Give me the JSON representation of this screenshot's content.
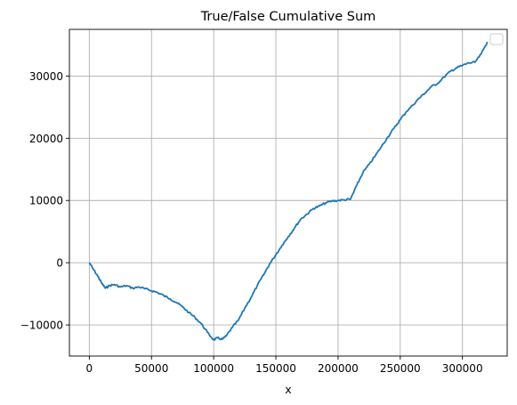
{
  "chart_data": {
    "type": "line",
    "title": "True/False Cumulative Sum",
    "xlabel": "x",
    "ylabel": "",
    "xlim": [
      -16000,
      336000
    ],
    "ylim": [
      -15000,
      37500
    ],
    "x_ticks": [
      0,
      50000,
      100000,
      150000,
      200000,
      250000,
      300000
    ],
    "x_tick_labels": [
      "0",
      "50000",
      "100000",
      "150000",
      "200000",
      "250000",
      "300000"
    ],
    "y_ticks": [
      -10000,
      0,
      10000,
      20000,
      30000
    ],
    "y_tick_labels": [
      "−10000",
      "0",
      "10000",
      "20000",
      "30000"
    ],
    "grid": true,
    "legend": {
      "placement": "top-right",
      "entries": []
    },
    "series": [
      {
        "color": "#1f77b4",
        "x": [
          0,
          3000,
          7000,
          10000,
          13000,
          16000,
          20000,
          25000,
          30000,
          35000,
          40000,
          45000,
          50000,
          55000,
          60000,
          65000,
          70000,
          75000,
          80000,
          85000,
          90000,
          95000,
          100000,
          103000,
          107000,
          110000,
          115000,
          120000,
          125000,
          130000,
          135000,
          140000,
          145000,
          150000,
          155000,
          160000,
          165000,
          170000,
          175000,
          180000,
          185000,
          190000,
          195000,
          200000,
          205000,
          210000,
          215000,
          220000,
          225000,
          230000,
          235000,
          240000,
          245000,
          250000,
          255000,
          260000,
          265000,
          270000,
          275000,
          280000,
          285000,
          290000,
          295000,
          300000,
          305000,
          310000,
          315000,
          320000
        ],
        "y": [
          0,
          -1000,
          -2200,
          -3300,
          -4100,
          -3700,
          -3500,
          -3900,
          -3700,
          -4100,
          -3900,
          -4200,
          -4500,
          -4800,
          -5300,
          -5800,
          -6400,
          -7100,
          -8000,
          -8800,
          -9800,
          -11200,
          -12400,
          -12100,
          -12300,
          -11800,
          -10400,
          -9200,
          -7300,
          -5600,
          -3700,
          -2000,
          -200,
          1300,
          2800,
          4200,
          5600,
          7000,
          7800,
          8700,
          9100,
          9600,
          9900,
          10000,
          10100,
          10200,
          12400,
          14500,
          15800,
          17200,
          18700,
          20200,
          21600,
          23000,
          24300,
          25300,
          26400,
          27300,
          28300,
          28800,
          29800,
          30700,
          31300,
          31700,
          32100,
          32200,
          33500,
          35500
        ]
      }
    ]
  }
}
